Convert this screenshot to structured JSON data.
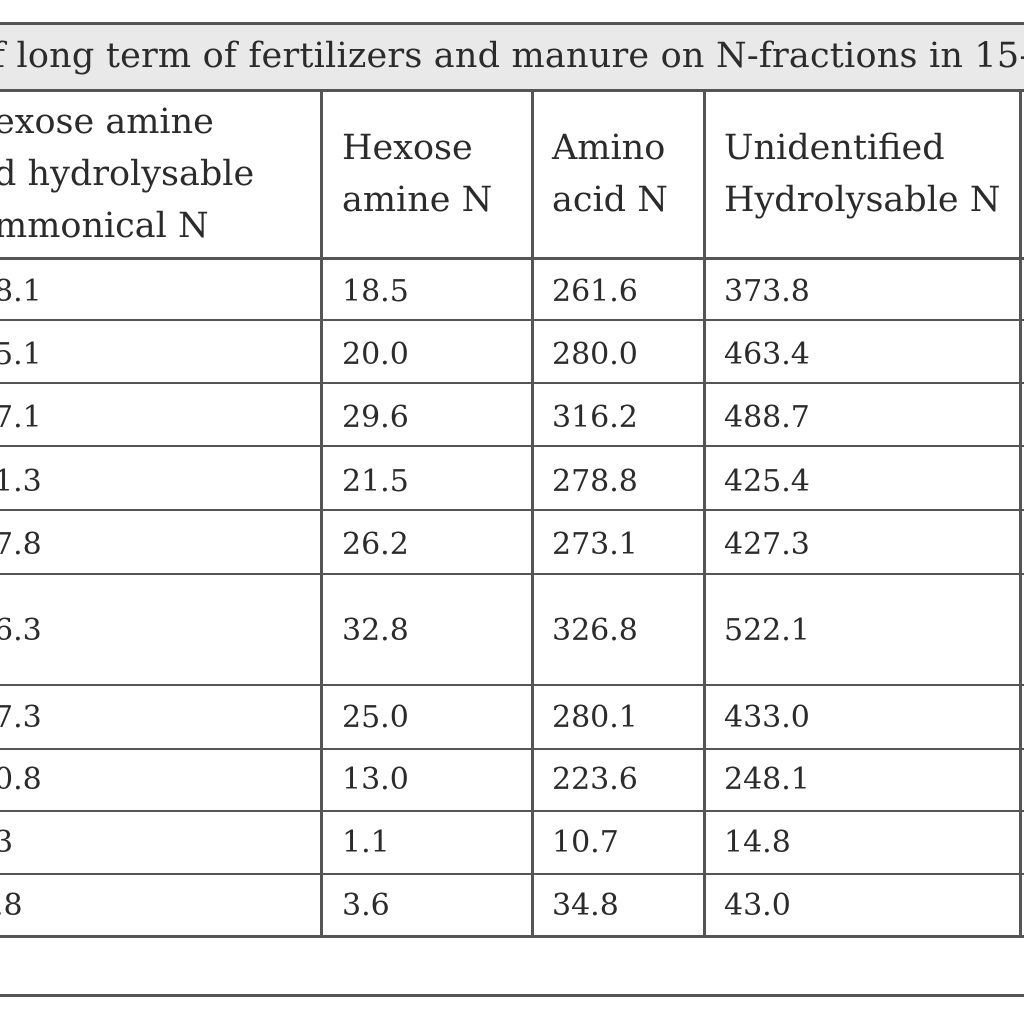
{
  "table": {
    "title": "f long term of fertilizers and manure on N-fractions in 15-1",
    "headers": [
      "exose amine\nd hydrolysable\nmmonical N",
      "Hexose\namine N",
      "Amino\nacid N",
      "Unidentified\nHydrolysable N"
    ],
    "rows": [
      [
        "8.1",
        "18.5",
        "261.6",
        "373.8"
      ],
      [
        "5.1",
        "20.0",
        "280.0",
        "463.4"
      ],
      [
        "7.1",
        "29.6",
        "316.2",
        "488.7"
      ],
      [
        "1.3",
        "21.5",
        "278.8",
        "425.4"
      ],
      [
        "7.8",
        "26.2",
        "273.1",
        "427.3"
      ],
      [
        "6.3",
        "32.8",
        "326.8",
        "522.1"
      ],
      [
        "7.3",
        "25.0",
        "280.1",
        "433.0"
      ],
      [
        "0.8",
        "13.0",
        "223.6",
        "248.1"
      ],
      [
        "3",
        "1.1",
        "10.7",
        "14.8"
      ],
      [
        ".8",
        "3.6",
        "34.8",
        "43.0"
      ]
    ]
  }
}
